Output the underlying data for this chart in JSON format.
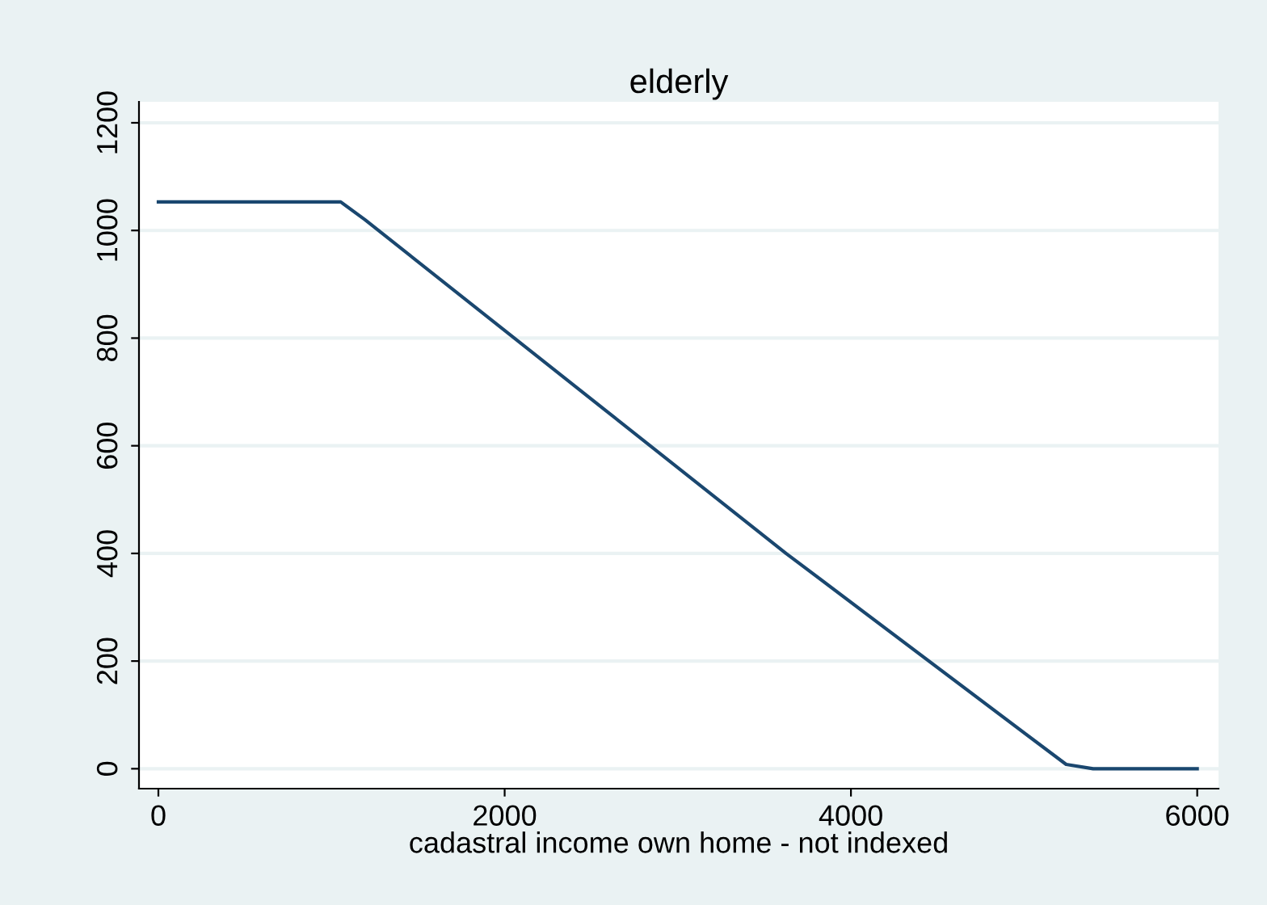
{
  "chart_data": {
    "type": "line",
    "title": "elderly",
    "xlabel": "cadastral income own home - not indexed",
    "x": [
      0,
      1053,
      1193,
      3625,
      5243,
      5399,
      6000
    ],
    "series": [
      {
        "color": "#1a476f",
        "values": [
          1053,
          1053,
          1020,
          400,
          8,
          0,
          0
        ]
      }
    ],
    "xlim": [
      -112,
      6123
    ],
    "ylim": [
      -37,
      1239
    ],
    "xticks": [
      0,
      2000,
      4000,
      6000
    ],
    "yticks": [
      0,
      200,
      400,
      600,
      800,
      1000,
      1200
    ],
    "grid": "y",
    "marker": "none",
    "line_style": "solid"
  }
}
